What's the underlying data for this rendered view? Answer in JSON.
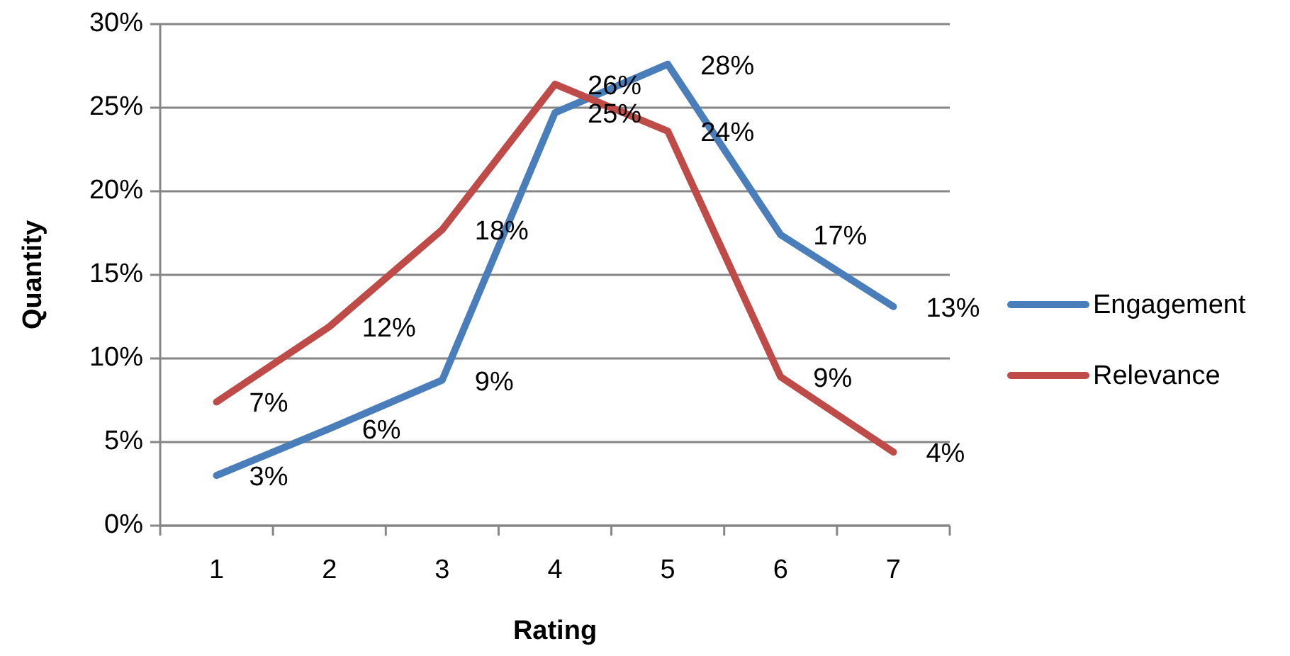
{
  "chart_data": {
    "type": "line",
    "xlabel": "Rating",
    "ylabel": "Quantity",
    "categories": [
      "1",
      "2",
      "3",
      "4",
      "5",
      "6",
      "7"
    ],
    "series": [
      {
        "name": "Engagement",
        "color": "#4a7ebb",
        "values": [
          3.0,
          5.8,
          8.7,
          24.7,
          27.6,
          17.4,
          13.1
        ],
        "value_labels": [
          "3%",
          "6%",
          "9%",
          "25%",
          "28%",
          "17%",
          "13%"
        ]
      },
      {
        "name": "Relevance",
        "color": "#be4b48",
        "values": [
          7.4,
          11.9,
          17.7,
          26.4,
          23.6,
          8.9,
          4.4
        ],
        "value_labels": [
          "7%",
          "12%",
          "18%",
          "26%",
          "24%",
          "9%",
          "4%"
        ]
      }
    ],
    "ylim": [
      0,
      30
    ],
    "yticks": [
      {
        "value": 0,
        "label": "0%"
      },
      {
        "value": 5,
        "label": "5%"
      },
      {
        "value": 10,
        "label": "10%"
      },
      {
        "value": 15,
        "label": "15%"
      },
      {
        "value": 20,
        "label": "20%"
      },
      {
        "value": 25,
        "label": "25%"
      },
      {
        "value": 30,
        "label": "30%"
      }
    ],
    "grid": "y",
    "legend": "right",
    "marker": "none",
    "line_style": "solid"
  }
}
